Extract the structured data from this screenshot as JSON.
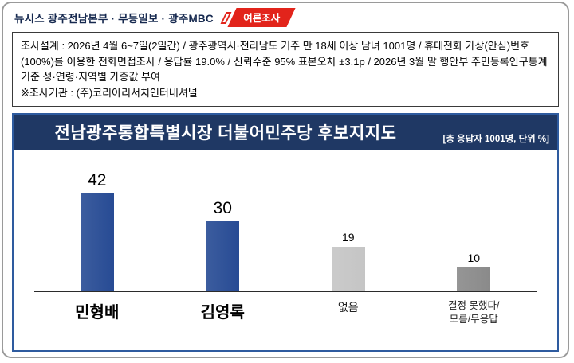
{
  "header": {
    "title": "뉴시스  광주전남본부 · 무등일보 · 광주MBC",
    "badge": "여론조사"
  },
  "survey": {
    "design": "조사설계 : 2026년 4월 6~7일(2일간) / 광주광역시·전라남도 거주 만 18세 이상 남녀 1001명 / 휴대전화 가상(안심)번호(100%)를 이용한 전화면접조사 / 응답률 19.0% / 신뢰수준 95% 표본오차 ±3.1p / 2026년 3월 말 행안부 주민등록인구통계 기준 성·연령·지역별 가중값 부여",
    "agency": "※조사기관 : (주)코리아리서치인터내셔널"
  },
  "chart": {
    "title": "전남광주통합특별시장 더불어민주당 후보지지도",
    "note": "[총 응답자 1001명, 단위 %]"
  },
  "chart_data": {
    "type": "bar",
    "title": "전남광주통합특별시장 더불어민주당 후보지지도",
    "categories": [
      "민형배",
      "김영록",
      "없음",
      "결정 못했다/\n모름/무응답"
    ],
    "values": [
      42,
      30,
      19,
      10
    ],
    "bar_colors": [
      "#274b94",
      "#274b94",
      "#c5c5c5",
      "#8a8a8a"
    ],
    "xlabel": "",
    "ylabel": "",
    "ylim": [
      0,
      50
    ],
    "unit": "%",
    "total_respondents": 1001,
    "grid": false,
    "legend": "none",
    "accent_colors": {
      "titlebar": "#1f3864",
      "panel_border": "#2e5b9f",
      "badge_red": "#e2241b",
      "header_navy": "#16294f"
    }
  }
}
